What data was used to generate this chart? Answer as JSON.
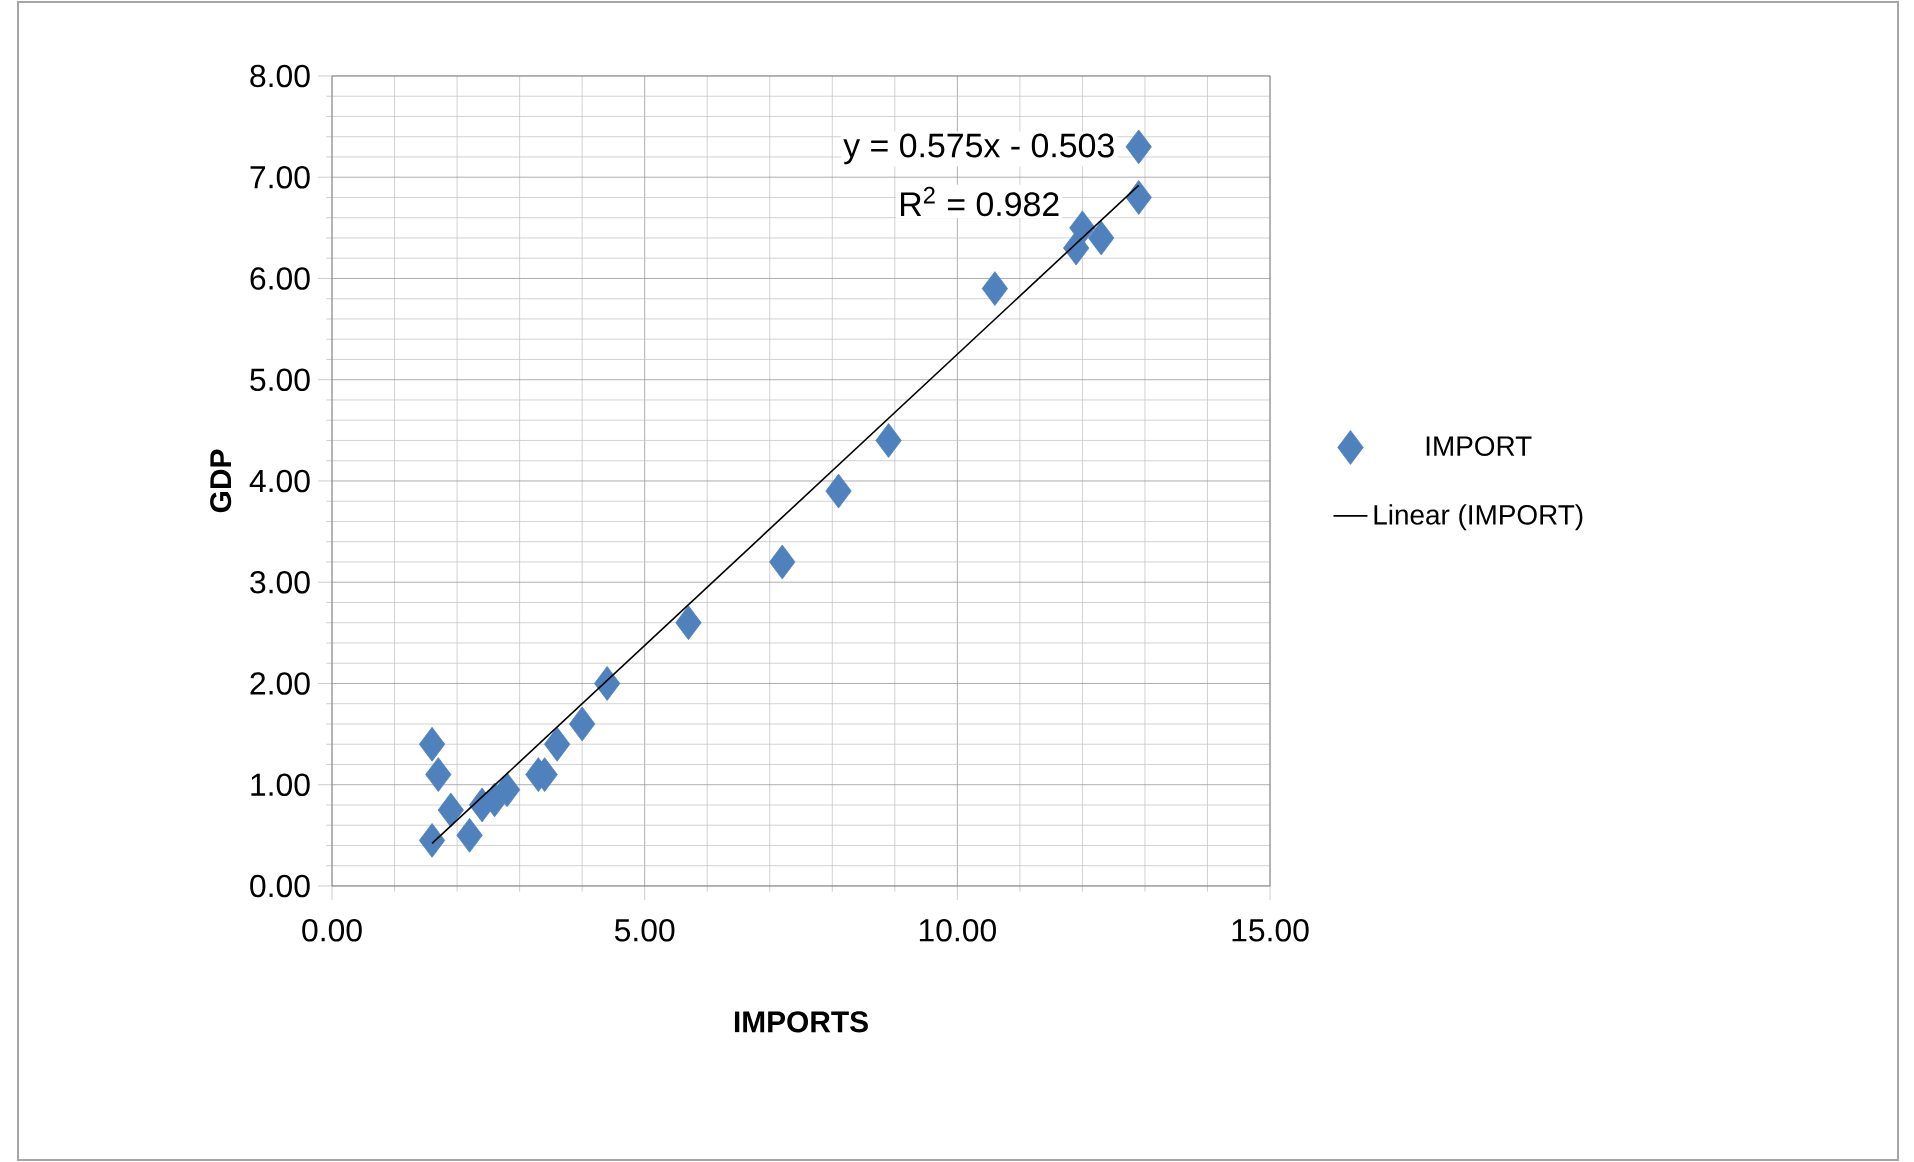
{
  "chart_data": {
    "type": "scatter",
    "xlabel": "IMPORTS",
    "ylabel": "GDP",
    "xlim": [
      0,
      15
    ],
    "ylim": [
      0,
      8
    ],
    "xticks": [
      {
        "value": 0,
        "label": "0.00"
      },
      {
        "value": 5,
        "label": "5.00"
      },
      {
        "value": 10,
        "label": "10.00"
      },
      {
        "value": 15,
        "label": "15.00"
      }
    ],
    "yticks": [
      {
        "value": 0,
        "label": "0.00"
      },
      {
        "value": 1,
        "label": "1.00"
      },
      {
        "value": 2,
        "label": "2.00"
      },
      {
        "value": 3,
        "label": "3.00"
      },
      {
        "value": 4,
        "label": "4.00"
      },
      {
        "value": 5,
        "label": "5.00"
      },
      {
        "value": 6,
        "label": "6.00"
      },
      {
        "value": 7,
        "label": "7.00"
      },
      {
        "value": 8,
        "label": "8.00"
      }
    ],
    "grid": true,
    "legend": "right",
    "annotations": [
      "y = 0.575x - 0.503",
      "R$^{2}$ = 0.982"
    ],
    "series": [
      {
        "name": "IMPORT",
        "marker": "diamond",
        "color": "#4f81bd",
        "x": [
          1.6,
          1.6,
          1.7,
          1.9,
          2.2,
          2.4,
          2.6,
          2.8,
          3.3,
          3.4,
          3.6,
          4.0,
          4.4,
          5.7,
          7.2,
          8.1,
          8.9,
          10.6,
          11.9,
          12.0,
          12.3,
          12.9,
          12.9
        ],
        "values": [
          0.45,
          1.4,
          1.1,
          0.75,
          0.5,
          0.8,
          0.85,
          0.95,
          1.1,
          1.1,
          1.4,
          1.6,
          2.0,
          2.6,
          3.2,
          3.9,
          4.4,
          5.9,
          6.3,
          6.5,
          6.4,
          6.8,
          7.3
        ]
      },
      {
        "name": "Linear (IMPORT)",
        "type": "line",
        "marker": "none",
        "line_style": "solid",
        "color": "#000000",
        "x": [
          1.6,
          12.9
        ],
        "values": [
          0.42,
          6.92
        ]
      }
    ]
  }
}
